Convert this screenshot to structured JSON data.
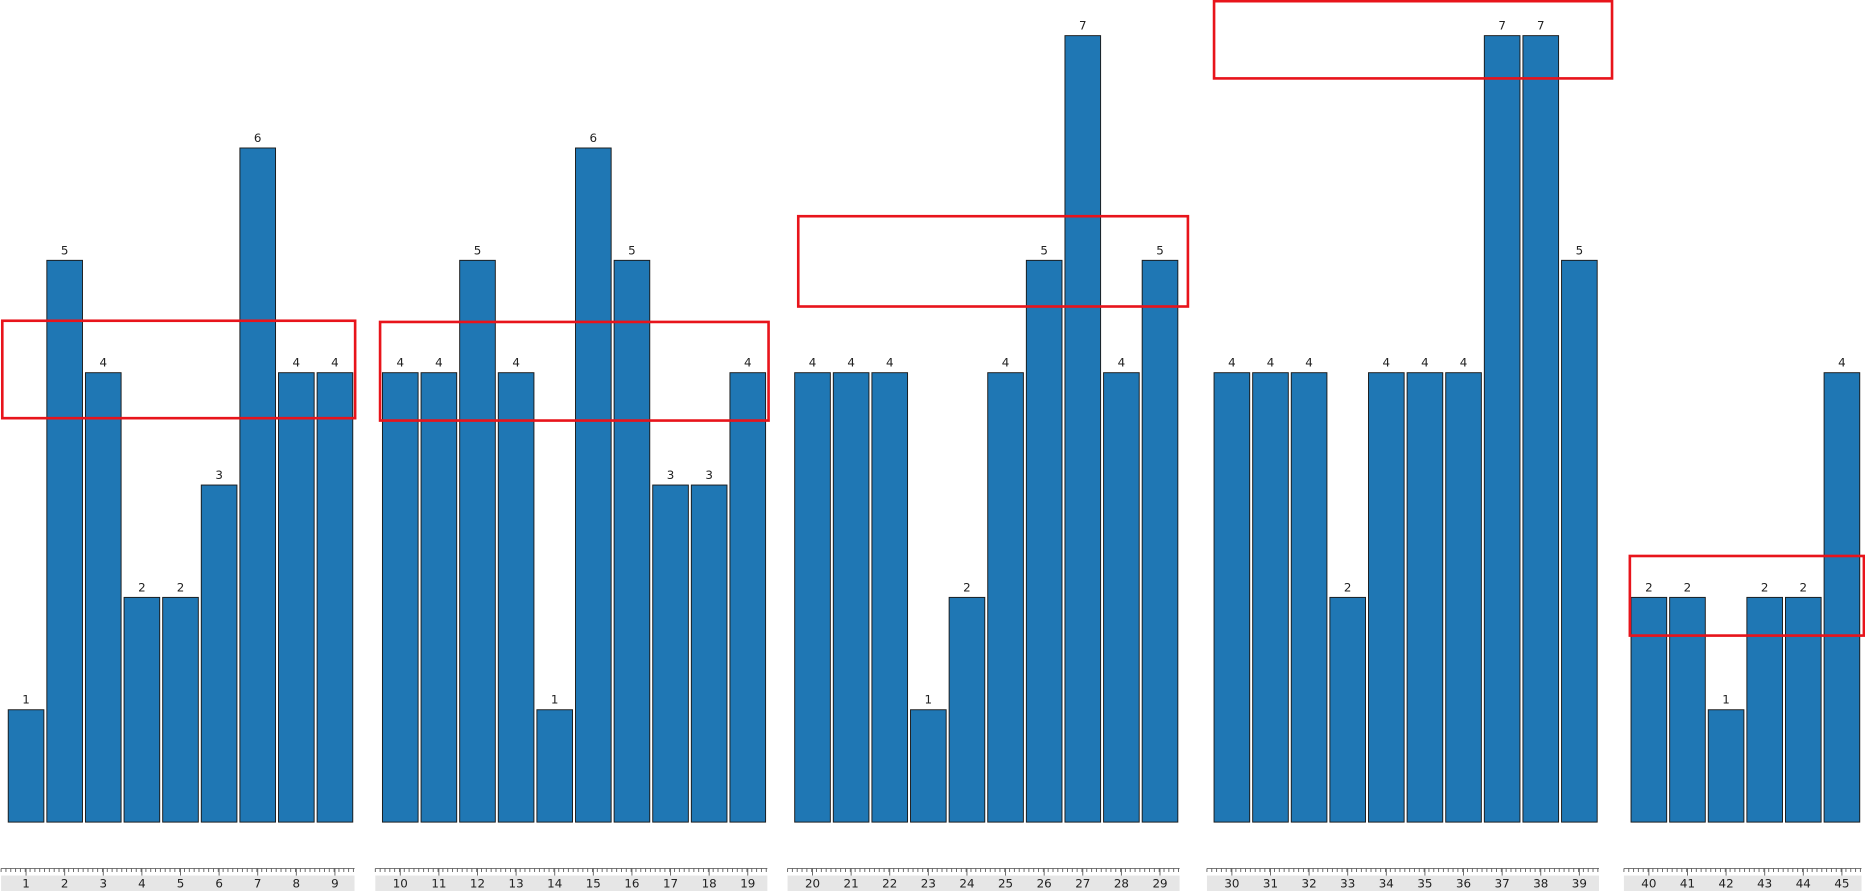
{
  "chart_data": [
    {
      "type": "bar",
      "categories": [
        "1",
        "2",
        "3",
        "4",
        "5",
        "6",
        "7",
        "8",
        "9"
      ],
      "values": [
        1,
        5,
        4,
        2,
        2,
        3,
        6,
        4,
        4
      ],
      "color": "#1f77b4"
    },
    {
      "type": "bar",
      "categories": [
        "10",
        "11",
        "12",
        "13",
        "14",
        "15",
        "16",
        "17",
        "18",
        "19"
      ],
      "values": [
        4,
        4,
        5,
        4,
        1,
        6,
        5,
        3,
        3,
        4
      ],
      "color": "#1f77b4"
    },
    {
      "type": "bar",
      "categories": [
        "20",
        "21",
        "22",
        "23",
        "24",
        "25",
        "26",
        "27",
        "28",
        "29"
      ],
      "values": [
        4,
        4,
        4,
        1,
        2,
        4,
        5,
        7,
        4,
        5
      ],
      "color": "#1f77b4"
    },
    {
      "type": "bar",
      "categories": [
        "30",
        "31",
        "32",
        "33",
        "34",
        "35",
        "36",
        "37",
        "38",
        "39"
      ],
      "values": [
        4,
        4,
        4,
        2,
        4,
        4,
        4,
        7,
        7,
        5
      ],
      "color": "#1f77b4"
    },
    {
      "type": "bar",
      "categories": [
        "40",
        "41",
        "42",
        "43",
        "44",
        "45"
      ],
      "values": [
        2,
        2,
        1,
        2,
        2,
        4
      ],
      "color": "#1f77b4"
    }
  ]
}
